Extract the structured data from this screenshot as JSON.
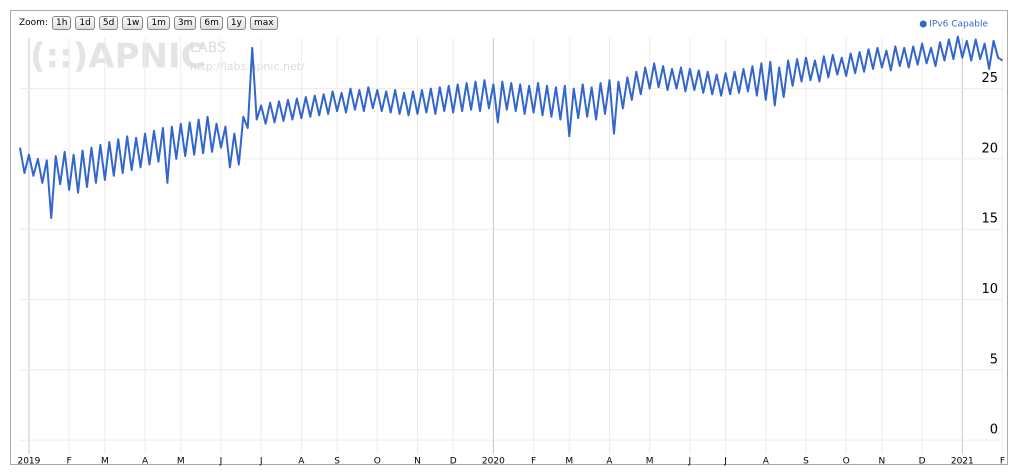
{
  "chart_data": {
    "type": "line",
    "zoom_label": "Zoom:",
    "zoom_buttons": [
      "1h",
      "1d",
      "5d",
      "1w",
      "1m",
      "3m",
      "6m",
      "1y",
      "max"
    ],
    "watermark": {
      "logo": "(::)APNIC",
      "labs": "LABS",
      "url": "http://labs.apnic.net/"
    },
    "legend": "top-right",
    "grid": true,
    "ylim": [
      -0.7,
      28.6
    ],
    "yticks": [
      0,
      5,
      10,
      15,
      20,
      25
    ],
    "categories": [
      null,
      null,
      "2019",
      null,
      null,
      null,
      null,
      null,
      null,
      null,
      null,
      "F",
      null,
      null,
      null,
      null,
      null,
      null,
      null,
      "M",
      null,
      null,
      null,
      null,
      null,
      null,
      null,
      null,
      "A",
      null,
      null,
      null,
      null,
      null,
      null,
      null,
      "M",
      null,
      null,
      null,
      null,
      null,
      null,
      null,
      null,
      "J",
      null,
      null,
      null,
      null,
      null,
      null,
      null,
      null,
      "J",
      null,
      null,
      null,
      null,
      null,
      null,
      null,
      null,
      "A",
      null,
      null,
      null,
      null,
      null,
      null,
      null,
      "S",
      null,
      null,
      null,
      null,
      null,
      null,
      null,
      null,
      "O",
      null,
      null,
      null,
      null,
      null,
      null,
      null,
      null,
      "N",
      null,
      null,
      null,
      null,
      null,
      null,
      null,
      "D",
      null,
      null,
      null,
      null,
      null,
      null,
      null,
      null,
      "2020",
      null,
      null,
      null,
      null,
      null,
      null,
      null,
      null,
      "F",
      null,
      null,
      null,
      null,
      null,
      null,
      null,
      "M",
      null,
      null,
      null,
      null,
      null,
      null,
      null,
      null,
      "A",
      null,
      null,
      null,
      null,
      null,
      null,
      null,
      null,
      "M",
      null,
      null,
      null,
      null,
      null,
      null,
      null,
      null,
      "J",
      null,
      null,
      null,
      null,
      null,
      null,
      null,
      "J",
      null,
      null,
      null,
      null,
      null,
      null,
      null,
      null,
      "A",
      null,
      null,
      null,
      null,
      null,
      null,
      null,
      null,
      "S",
      null,
      null,
      null,
      null,
      null,
      null,
      null,
      null,
      "O",
      null,
      null,
      null,
      null,
      null,
      null,
      null,
      "N",
      null,
      null,
      null,
      null,
      null,
      null,
      null,
      null,
      "D",
      null,
      null,
      null,
      null,
      null,
      null,
      null,
      null,
      "2021",
      null,
      null,
      null,
      null,
      null,
      null,
      null,
      null,
      "F"
    ],
    "series": [
      {
        "name": "IPv6 Capable",
        "color": "#3366cc",
        "values": [
          20.8,
          19.0,
          20.3,
          18.8,
          20.0,
          18.3,
          19.9,
          15.8,
          20.2,
          18.2,
          20.5,
          17.8,
          20.3,
          17.6,
          20.6,
          18.0,
          20.8,
          18.3,
          21.0,
          18.5,
          21.2,
          18.8,
          21.4,
          19.0,
          21.6,
          19.2,
          21.5,
          19.4,
          21.8,
          19.6,
          22.0,
          19.8,
          22.2,
          18.3,
          22.3,
          20.0,
          22.5,
          20.2,
          22.6,
          20.3,
          22.8,
          20.4,
          23.0,
          20.5,
          22.5,
          20.8,
          22.3,
          19.4,
          21.8,
          19.6,
          23.0,
          22.2,
          27.9,
          22.8,
          23.8,
          22.5,
          24.0,
          22.6,
          24.1,
          22.7,
          24.2,
          22.8,
          24.3,
          22.9,
          24.4,
          23.0,
          24.5,
          23.1,
          24.6,
          23.2,
          24.8,
          23.4,
          24.7,
          23.3,
          25.0,
          23.5,
          24.9,
          23.4,
          25.1,
          23.6,
          24.9,
          23.4,
          24.8,
          23.3,
          24.9,
          23.2,
          24.7,
          23.1,
          24.8,
          23.2,
          24.9,
          23.3,
          25.0,
          23.2,
          25.1,
          23.4,
          25.2,
          23.3,
          25.3,
          23.4,
          25.4,
          23.5,
          25.5,
          23.4,
          25.6,
          23.6,
          25.3,
          22.6,
          25.5,
          23.5,
          25.4,
          23.4,
          25.3,
          23.2,
          25.2,
          23.3,
          25.4,
          23.1,
          25.2,
          23.0,
          25.1,
          22.8,
          25.2,
          21.6,
          25.0,
          22.9,
          25.3,
          23.0,
          25.1,
          22.8,
          25.4,
          23.2,
          25.6,
          21.8,
          25.5,
          23.6,
          25.8,
          24.2,
          26.2,
          24.6,
          26.5,
          25.0,
          26.8,
          25.1,
          26.6,
          24.9,
          26.4,
          25.0,
          26.5,
          24.8,
          26.4,
          24.9,
          26.3,
          24.7,
          26.2,
          24.6,
          26.0,
          24.5,
          26.1,
          24.6,
          26.2,
          24.7,
          26.4,
          24.8,
          26.6,
          24.5,
          26.8,
          24.2,
          26.9,
          23.8,
          26.5,
          24.4,
          27.0,
          25.2,
          27.1,
          25.5,
          27.2,
          25.6,
          27.0,
          25.5,
          27.3,
          25.8,
          27.4,
          26.0,
          27.2,
          25.9,
          27.5,
          26.1,
          27.6,
          26.2,
          27.8,
          26.4,
          27.9,
          26.5,
          27.7,
          26.3,
          28.0,
          26.6,
          27.9,
          26.5,
          28.0,
          26.7,
          28.2,
          26.8,
          27.9,
          26.6,
          28.3,
          27.0,
          28.5,
          27.1,
          28.7,
          27.2,
          28.4,
          27.0,
          28.5,
          27.1,
          28.2,
          26.4,
          28.4,
          27.2,
          27.0
        ]
      }
    ]
  }
}
